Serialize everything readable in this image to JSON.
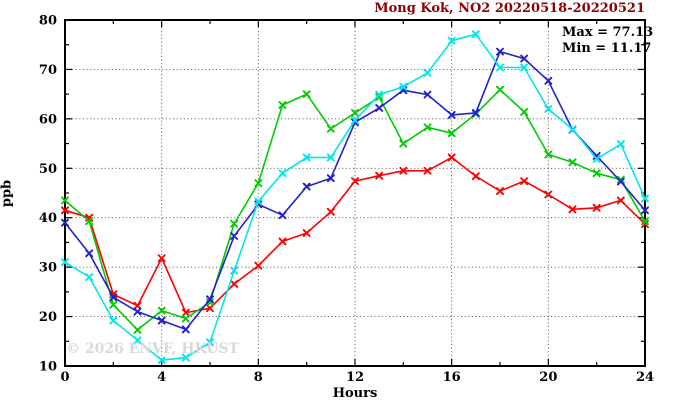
{
  "title": "Mong Kok, NO2 20220518-20220521",
  "legend": {
    "max_label": "Max = 77.13",
    "min_label": "Min = 11.17"
  },
  "watermark": "© 2026 ENVF, HKUST",
  "colors": {
    "title": "#8b0000",
    "watermark": "#d9d9d9",
    "axis": "#000000",
    "series_red": "#ff0000",
    "series_green": "#00cc00",
    "series_blue": "#2222cc",
    "series_cyan": "#00e5ee"
  },
  "chart_data": {
    "type": "line",
    "title": "Mong Kok, NO2 20220518-20220521",
    "xlabel": "Hours",
    "ylabel": "ppb",
    "xlim": [
      0,
      24
    ],
    "ylim": [
      10,
      80
    ],
    "x_major_ticks": [
      0,
      4,
      8,
      12,
      16,
      20,
      24
    ],
    "x_minor_step": 2,
    "y_major_ticks": [
      10,
      20,
      30,
      40,
      50,
      60,
      70,
      80
    ],
    "y_minor_step": 5,
    "grid": true,
    "legend_position": "top-right",
    "max_value": 77.13,
    "min_value": 11.17,
    "x": [
      0,
      1,
      2,
      3,
      4,
      5,
      6,
      7,
      8,
      9,
      10,
      11,
      12,
      13,
      14,
      15,
      16,
      17,
      18,
      19,
      20,
      21,
      22,
      23,
      24
    ],
    "series": [
      {
        "name": "day-red",
        "color": "#ff0000",
        "values": [
          41.5,
          40.0,
          24.5,
          22.2,
          31.8,
          20.8,
          21.7,
          26.6,
          30.3,
          35.2,
          36.9,
          41.2,
          47.4,
          48.5,
          49.5,
          49.5,
          52.2,
          48.4,
          45.4,
          47.4,
          44.7,
          41.7,
          42.0,
          43.5,
          38.7
        ]
      },
      {
        "name": "day-green",
        "color": "#00cc00",
        "values": [
          43.5,
          39.3,
          22.4,
          17.3,
          21.2,
          19.6,
          22.9,
          38.8,
          47.0,
          62.8,
          65.0,
          58.0,
          61.2,
          64.4,
          55.0,
          58.3,
          57.1,
          61.0,
          65.9,
          61.4,
          52.8,
          51.2,
          49.0,
          47.7,
          39.3
        ]
      },
      {
        "name": "day-blue",
        "color": "#2222cc",
        "values": [
          39.0,
          32.8,
          23.9,
          21.0,
          19.2,
          17.4,
          23.5,
          36.3,
          42.7,
          40.5,
          46.3,
          48.0,
          59.3,
          62.2,
          65.8,
          64.9,
          60.8,
          61.2,
          73.6,
          72.2,
          67.7,
          57.8,
          52.5,
          47.3,
          41.5
        ]
      },
      {
        "name": "day-cyan",
        "color": "#00e5ee",
        "values": [
          31.0,
          28.0,
          19.2,
          15.2,
          11.17,
          11.7,
          14.8,
          29.3,
          43.3,
          49.0,
          52.2,
          52.2,
          59.7,
          64.9,
          66.5,
          69.3,
          75.8,
          77.13,
          70.4,
          70.4,
          62.0,
          57.9,
          51.9,
          54.9,
          43.9
        ]
      }
    ]
  }
}
